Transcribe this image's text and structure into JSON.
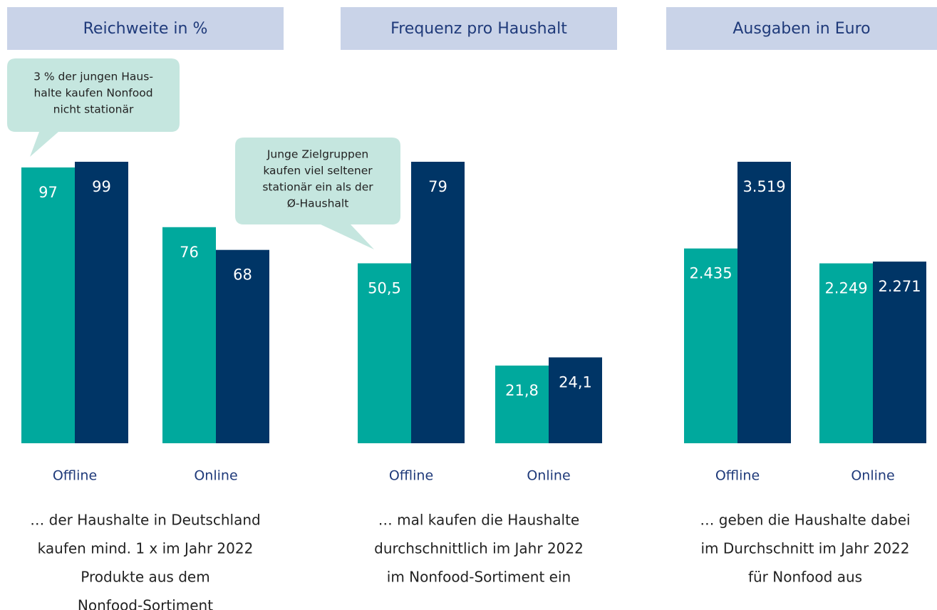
{
  "chart_data": [
    {
      "type": "bar",
      "title": "Reichweite in %",
      "categories": [
        "Offline",
        "Online"
      ],
      "series": [
        {
          "color": "#00a99d",
          "values": [
            97,
            76
          ]
        },
        {
          "color": "#003566",
          "values": [
            99,
            68
          ]
        }
      ],
      "annotation": [
        "3 % der jungen Haus-",
        "halte kaufen Nonfood",
        "nicht stationär"
      ],
      "description": [
        "… der Haushalte in Deutschland",
        "kaufen mind. 1 x im Jahr 2022",
        "Produkte aus dem",
        "Nonfood-Sortiment"
      ]
    },
    {
      "type": "bar",
      "title": "Frequenz pro Haushalt",
      "categories": [
        "Offline",
        "Online"
      ],
      "series": [
        {
          "color": "#00a99d",
          "values": [
            50.5,
            21.8
          ],
          "value_labels": [
            "50,5",
            "21,8"
          ]
        },
        {
          "color": "#003566",
          "values": [
            79,
            24.1
          ],
          "value_labels": [
            "79",
            "24,1"
          ]
        }
      ],
      "annotation": [
        "Junge Zielgruppen",
        "kaufen viel seltener",
        "stationär ein als der",
        "Ø-Haushalt"
      ],
      "description": [
        "… mal kaufen die Haushalte",
        "durchschnittlich im Jahr 2022",
        "im Nonfood-Sortiment ein"
      ]
    },
    {
      "type": "bar",
      "title": "Ausgaben in Euro",
      "categories": [
        "Offline",
        "Online"
      ],
      "series": [
        {
          "color": "#00a99d",
          "values": [
            2435,
            2249
          ],
          "value_labels": [
            "2.435",
            "2.249"
          ]
        },
        {
          "color": "#003566",
          "values": [
            3519,
            2271
          ],
          "value_labels": [
            "3.519",
            "2.271"
          ]
        }
      ],
      "description": [
        "… geben die Haushalte dabei",
        "im Durchschnitt im Jahr 2022",
        "für Nonfood aus"
      ]
    }
  ]
}
